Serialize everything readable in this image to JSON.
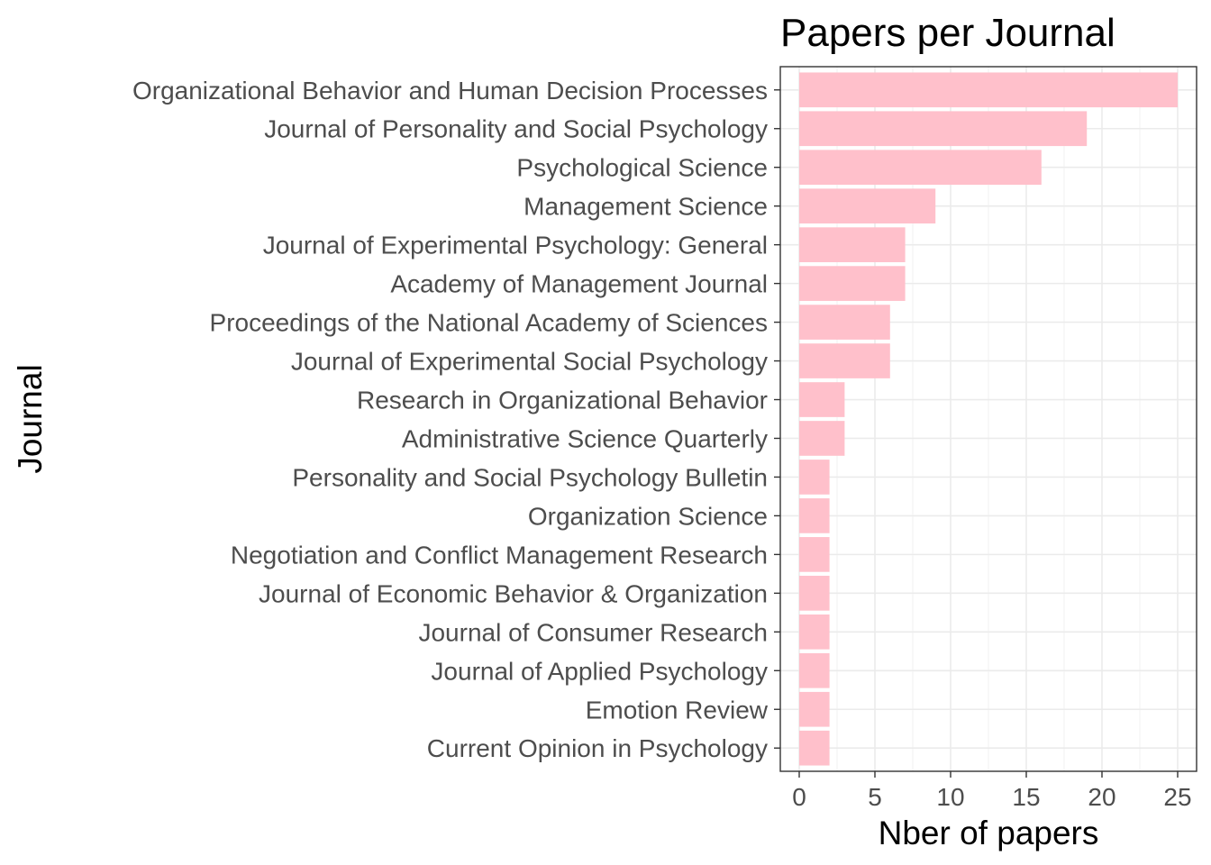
{
  "chart_data": {
    "type": "bar",
    "orientation": "horizontal",
    "title": "Papers per Journal",
    "xlabel": "Nber of papers",
    "ylabel": "Journal",
    "xlim": [
      0,
      26
    ],
    "xticks": [
      0,
      5,
      10,
      15,
      20,
      25
    ],
    "grid": true,
    "legend": "none",
    "bar_color": "#ffc0cb",
    "categories": [
      "Organizational Behavior and Human Decision Processes",
      "Journal of Personality and Social Psychology",
      "Psychological Science",
      "Management Science",
      "Journal of Experimental Psychology: General",
      "Academy of Management Journal",
      "Proceedings of the National Academy of Sciences",
      "Journal of Experimental Social Psychology",
      "Research in Organizational Behavior",
      "Administrative Science Quarterly",
      "Personality and Social Psychology Bulletin",
      "Organization Science",
      "Negotiation and Conflict Management Research",
      "Journal of Economic Behavior & Organization",
      "Journal of Consumer Research",
      "Journal of Applied Psychology",
      "Emotion Review",
      "Current Opinion in Psychology"
    ],
    "values": [
      25,
      19,
      16,
      9,
      7,
      7,
      6,
      6,
      3,
      3,
      2,
      2,
      2,
      2,
      2,
      2,
      2,
      2
    ]
  }
}
